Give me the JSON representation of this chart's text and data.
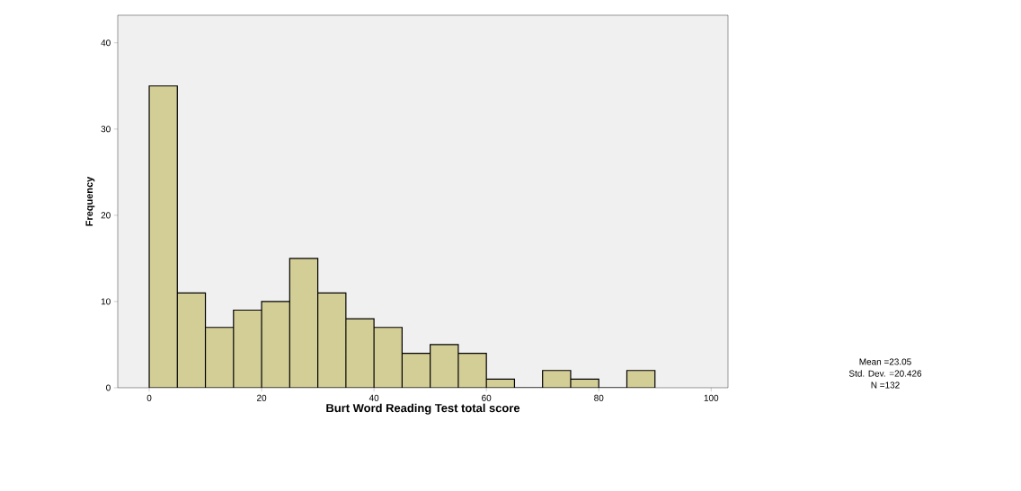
{
  "chart_data": {
    "type": "histogram",
    "xlabel": "Burt Word Reading Test total score",
    "ylabel": "Frequency",
    "bins": [
      0,
      5,
      10,
      15,
      20,
      25,
      30,
      35,
      40,
      45,
      50,
      55,
      60,
      65,
      70,
      75,
      80,
      85,
      90
    ],
    "values": [
      35,
      11,
      7,
      9,
      10,
      15,
      11,
      8,
      7,
      4,
      5,
      4,
      1,
      0,
      2,
      1,
      0,
      2
    ],
    "color": "#d3cd96",
    "xlim": [
      -5.6,
      103
    ],
    "ylim": [
      0,
      43.2
    ],
    "xticks": [
      0,
      20,
      40,
      60,
      80,
      100
    ],
    "yticks": [
      0,
      10,
      20,
      30,
      40
    ],
    "grid": false,
    "annotations": [
      "Mean =23.05",
      "Std. Dev. =20.426",
      "N =132"
    ]
  }
}
